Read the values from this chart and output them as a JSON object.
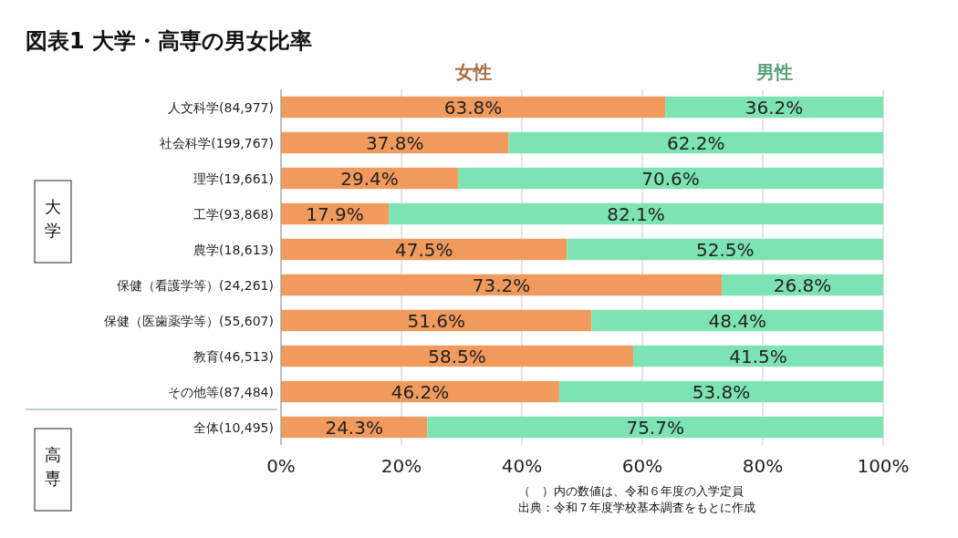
{
  "chart_data": {
    "type": "bar",
    "orientation": "horizontal",
    "stacked": true,
    "title": "図表1 大学・高専の男女比率",
    "categories": [
      "人文科学(84,977)",
      "社会科学(199,767)",
      "理学(19,661)",
      "工学(93,868)",
      "農学(18,613)",
      "保健（看護学等）(24,261)",
      "保健（医歯薬学等）(55,607)",
      "教育(46,513)",
      "その他等(87,484)",
      "全体(10,495)"
    ],
    "series": [
      {
        "name": "女性",
        "color": "#f09a5e",
        "values": [
          63.8,
          37.8,
          29.4,
          17.9,
          47.5,
          73.2,
          51.6,
          58.5,
          46.2,
          24.3
        ],
        "value_labels": [
          "63.8%",
          "37.8%",
          "29.4%",
          "17.9%",
          "47.5%",
          "73.2%",
          "51.6%",
          "58.5%",
          "46.2%",
          "24.3%"
        ]
      },
      {
        "name": "男性",
        "color": "#7ee3b2",
        "values": [
          36.2,
          62.2,
          70.6,
          82.1,
          52.5,
          26.8,
          48.4,
          41.5,
          53.8,
          75.7
        ],
        "value_labels": [
          "36.2%",
          "62.2%",
          "70.6%",
          "82.1%",
          "52.5%",
          "26.8%",
          "48.4%",
          "41.5%",
          "53.8%",
          "75.7%"
        ]
      }
    ],
    "xlim": [
      0,
      100
    ],
    "xticks": [
      {
        "value": 0,
        "label": "0%"
      },
      {
        "value": 20,
        "label": "20%"
      },
      {
        "value": 40,
        "label": "40%"
      },
      {
        "value": 60,
        "label": "60%"
      },
      {
        "value": 80,
        "label": "80%"
      },
      {
        "value": 100,
        "label": "100%"
      }
    ],
    "grid": "x",
    "legend": "top",
    "annotations": [
      "大学",
      "高専",
      "（　）内の数値は、令和６年度の入学定員",
      "出典：令和７年度学校基本調査をもとに作成"
    ]
  }
}
